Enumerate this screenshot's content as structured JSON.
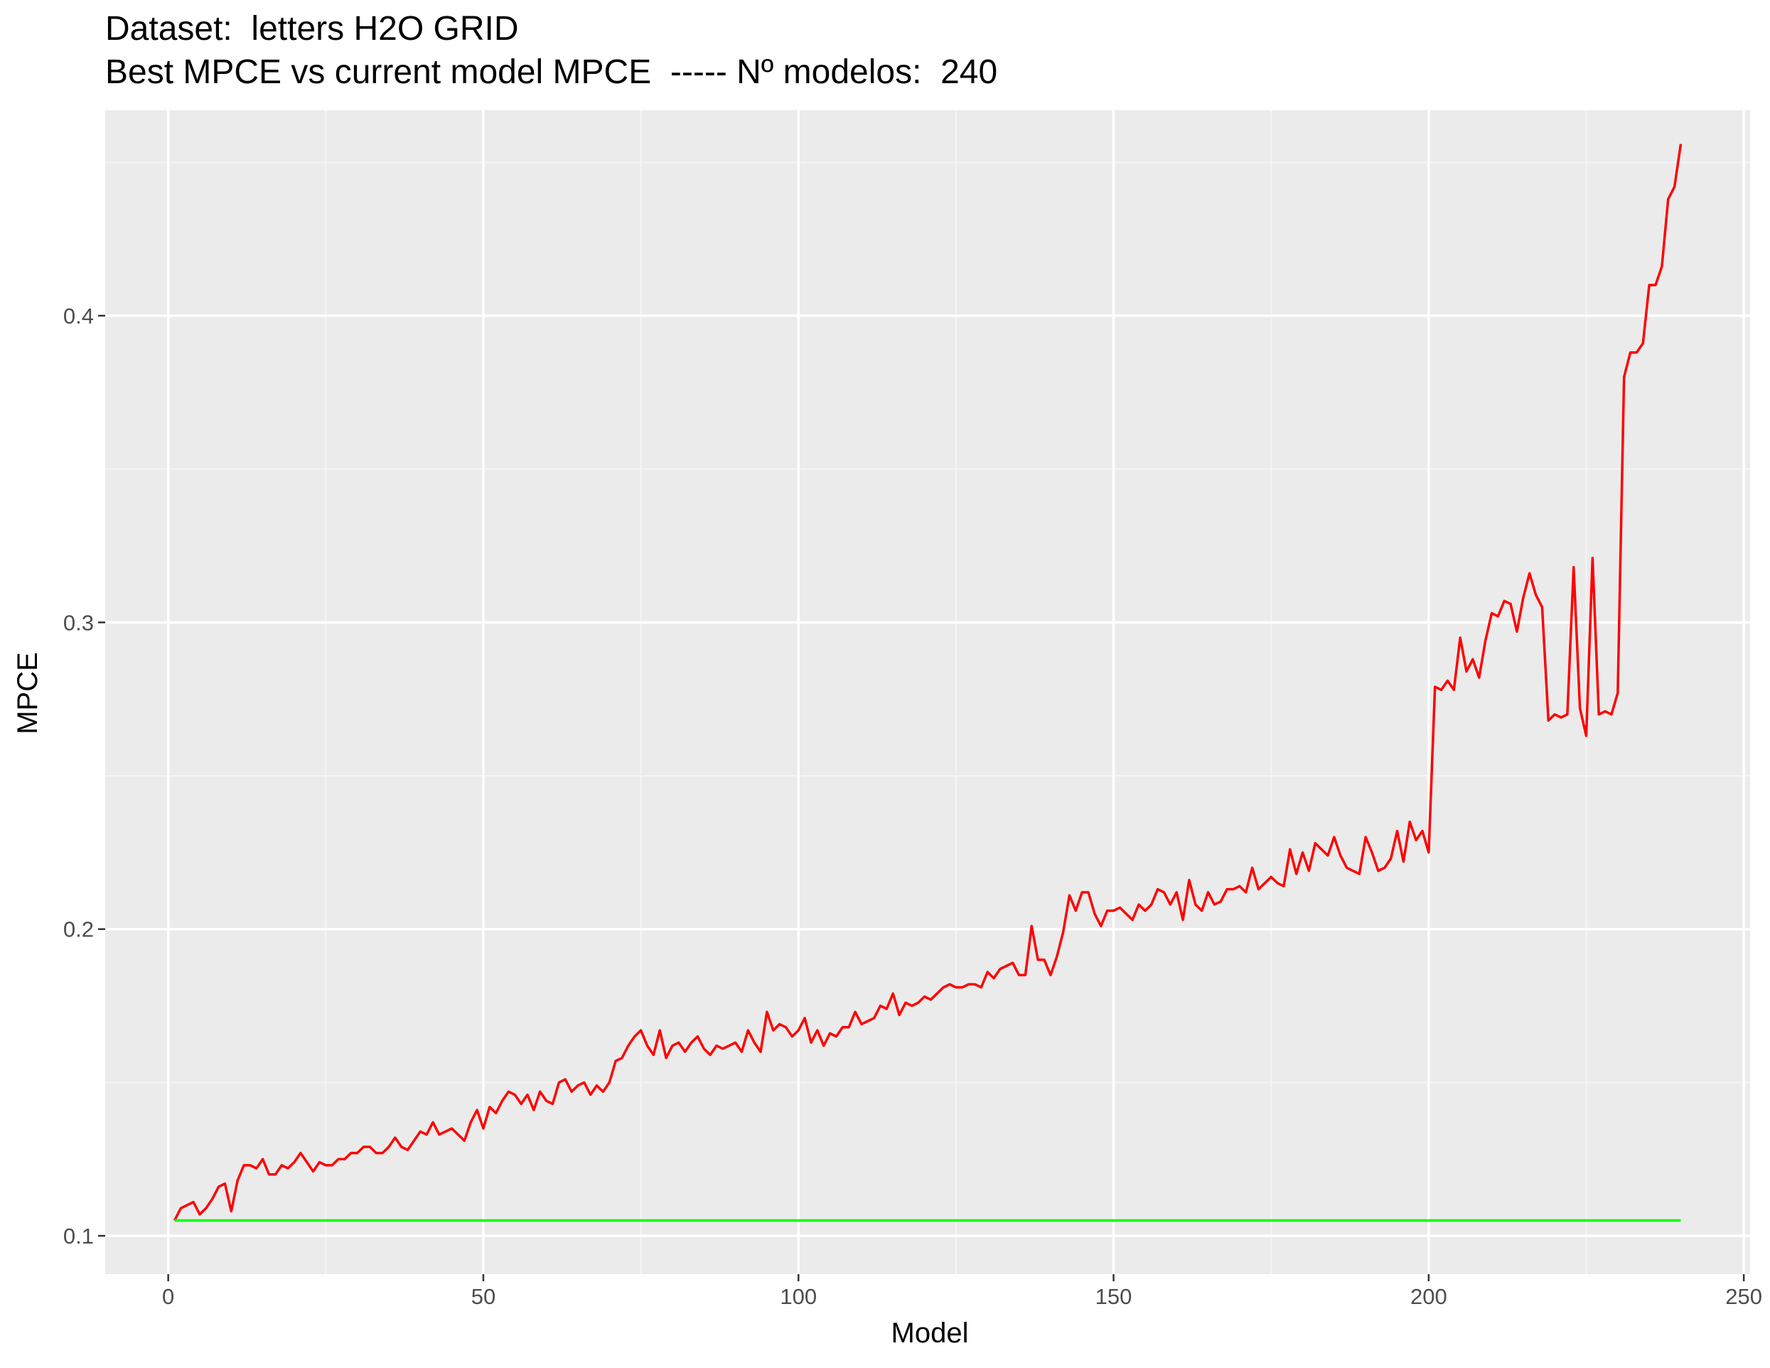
{
  "chart_data": {
    "type": "line",
    "title": "Dataset:  letters H2O GRID",
    "subtitle": "Best MPCE vs current model MPCE  ----- Nº modelos:  240",
    "xlabel": "Model",
    "ylabel": "MPCE",
    "xlim": [
      -10,
      251
    ],
    "ylim": [
      0.0875,
      0.467
    ],
    "x_ticks": [
      0,
      50,
      100,
      150,
      200,
      250
    ],
    "y_ticks": [
      0.1,
      0.2,
      0.3,
      0.4
    ],
    "x_tick_labels": [
      "0",
      "50",
      "100",
      "150",
      "200",
      "250"
    ],
    "y_tick_labels": [
      "0.1",
      "0.2",
      "0.3",
      "0.4"
    ],
    "grid": true,
    "legend": "none",
    "series": [
      {
        "color": "#ff0000",
        "x_start": 1,
        "values": [
          0.105,
          0.109,
          0.11,
          0.111,
          0.107,
          0.109,
          0.112,
          0.116,
          0.117,
          0.108,
          0.118,
          0.123,
          0.123,
          0.122,
          0.125,
          0.12,
          0.12,
          0.123,
          0.122,
          0.124,
          0.127,
          0.124,
          0.121,
          0.124,
          0.123,
          0.123,
          0.125,
          0.125,
          0.127,
          0.127,
          0.129,
          0.129,
          0.127,
          0.127,
          0.129,
          0.132,
          0.129,
          0.128,
          0.131,
          0.134,
          0.133,
          0.137,
          0.133,
          0.134,
          0.135,
          0.133,
          0.131,
          0.137,
          0.141,
          0.135,
          0.142,
          0.14,
          0.144,
          0.147,
          0.146,
          0.143,
          0.146,
          0.141,
          0.147,
          0.144,
          0.143,
          0.15,
          0.151,
          0.147,
          0.149,
          0.15,
          0.146,
          0.149,
          0.147,
          0.15,
          0.157,
          0.158,
          0.162,
          0.165,
          0.167,
          0.162,
          0.159,
          0.167,
          0.158,
          0.162,
          0.163,
          0.16,
          0.163,
          0.165,
          0.161,
          0.159,
          0.162,
          0.161,
          0.162,
          0.163,
          0.16,
          0.167,
          0.163,
          0.16,
          0.173,
          0.167,
          0.169,
          0.168,
          0.165,
          0.167,
          0.171,
          0.163,
          0.167,
          0.162,
          0.166,
          0.165,
          0.168,
          0.168,
          0.173,
          0.169,
          0.17,
          0.171,
          0.175,
          0.174,
          0.179,
          0.172,
          0.176,
          0.175,
          0.176,
          0.178,
          0.177,
          0.179,
          0.181,
          0.182,
          0.181,
          0.181,
          0.182,
          0.182,
          0.181,
          0.186,
          0.184,
          0.187,
          0.188,
          0.189,
          0.185,
          0.185,
          0.201,
          0.19,
          0.19,
          0.185,
          0.191,
          0.199,
          0.211,
          0.206,
          0.212,
          0.212,
          0.205,
          0.201,
          0.206,
          0.206,
          0.207,
          0.205,
          0.203,
          0.208,
          0.206,
          0.208,
          0.213,
          0.212,
          0.208,
          0.212,
          0.203,
          0.216,
          0.208,
          0.206,
          0.212,
          0.208,
          0.209,
          0.213,
          0.213,
          0.214,
          0.212,
          0.22,
          0.213,
          0.215,
          0.217,
          0.215,
          0.214,
          0.226,
          0.218,
          0.225,
          0.219,
          0.228,
          0.226,
          0.224,
          0.23,
          0.224,
          0.22,
          0.219,
          0.218,
          0.23,
          0.225,
          0.219,
          0.22,
          0.223,
          0.232,
          0.222,
          0.235,
          0.229,
          0.232,
          0.225,
          0.279,
          0.278,
          0.281,
          0.278,
          0.295,
          0.284,
          0.288,
          0.282,
          0.294,
          0.303,
          0.302,
          0.307,
          0.306,
          0.297,
          0.308,
          0.316,
          0.309,
          0.305,
          0.268,
          0.27,
          0.269,
          0.27,
          0.318,
          0.272,
          0.263,
          0.321,
          0.27,
          0.271,
          0.27,
          0.277,
          0.38,
          0.388,
          0.388,
          0.391,
          0.41,
          0.41,
          0.416,
          0.438,
          0.442,
          0.456
        ]
      },
      {
        "color": "#00ff00",
        "x": [
          1,
          240
        ],
        "values": [
          0.105,
          0.105
        ]
      }
    ]
  },
  "colors": {
    "panel_background": "#ebebeb",
    "grid_major": "#ffffff",
    "grid_minor": "#f5f5f5",
    "tick_text": "#4d4d4d",
    "tick_mark": "#333333"
  }
}
